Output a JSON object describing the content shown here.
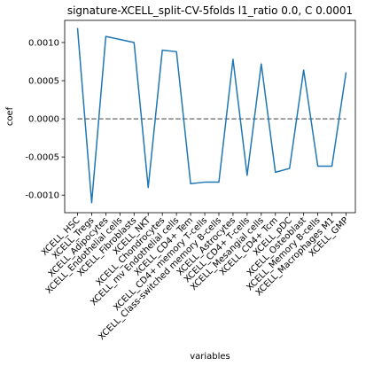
{
  "chart_data": {
    "type": "line",
    "title": "signature-XCELL_split-CV-5folds l1_ratio 0.0, C 0.0001",
    "xlabel": "variables",
    "ylabel": "coef",
    "ylim": [
      -0.00123,
      0.00129
    ],
    "yticks": [
      "-0.0010",
      "-0.0005",
      "0.0000",
      "0.0005",
      "0.0010"
    ],
    "ytick_values": [
      -0.001,
      -0.0005,
      0.0,
      0.0005,
      0.001
    ],
    "categories": [
      "XCELL_HSC",
      "XCELL_Tregs",
      "XCELL_Adipocytes",
      "XCELL_Endothelial cells",
      "XCELL_Fibroblasts",
      "XCELL_NKT",
      "XCELL_Chondrocytes",
      "XCELL_mv Endothelial cells",
      "XCELL_CD4+ Tem",
      "XCELL_CD4+ memory T-cells",
      "XCELL_Class-switched memory B-cells",
      "XCELL_Astrocytes",
      "XCELL_CD4+ T-cells",
      "XCELL_Mesangial cells",
      "XCELL_CD4+ Tcm",
      "XCELL_pDC",
      "XCELL_Osteoblast",
      "XCELL_Memory B-cells",
      "XCELL_Macrophages M1",
      "XCELL_GMP"
    ],
    "series": [
      {
        "values": [
          0.00119,
          -0.0011,
          0.00108,
          0.00104,
          0.001,
          -0.0009,
          0.0009,
          0.00088,
          -0.00085,
          -0.00083,
          -0.00083,
          0.00078,
          -0.00074,
          0.00072,
          -0.0007,
          -0.00065,
          0.00064,
          -0.00062,
          -0.00062,
          0.00061
        ],
        "color": "#1f77b4"
      }
    ],
    "reference_line": {
      "y": 0.0,
      "style": "dashed",
      "color": "#808080"
    },
    "grid": false
  }
}
